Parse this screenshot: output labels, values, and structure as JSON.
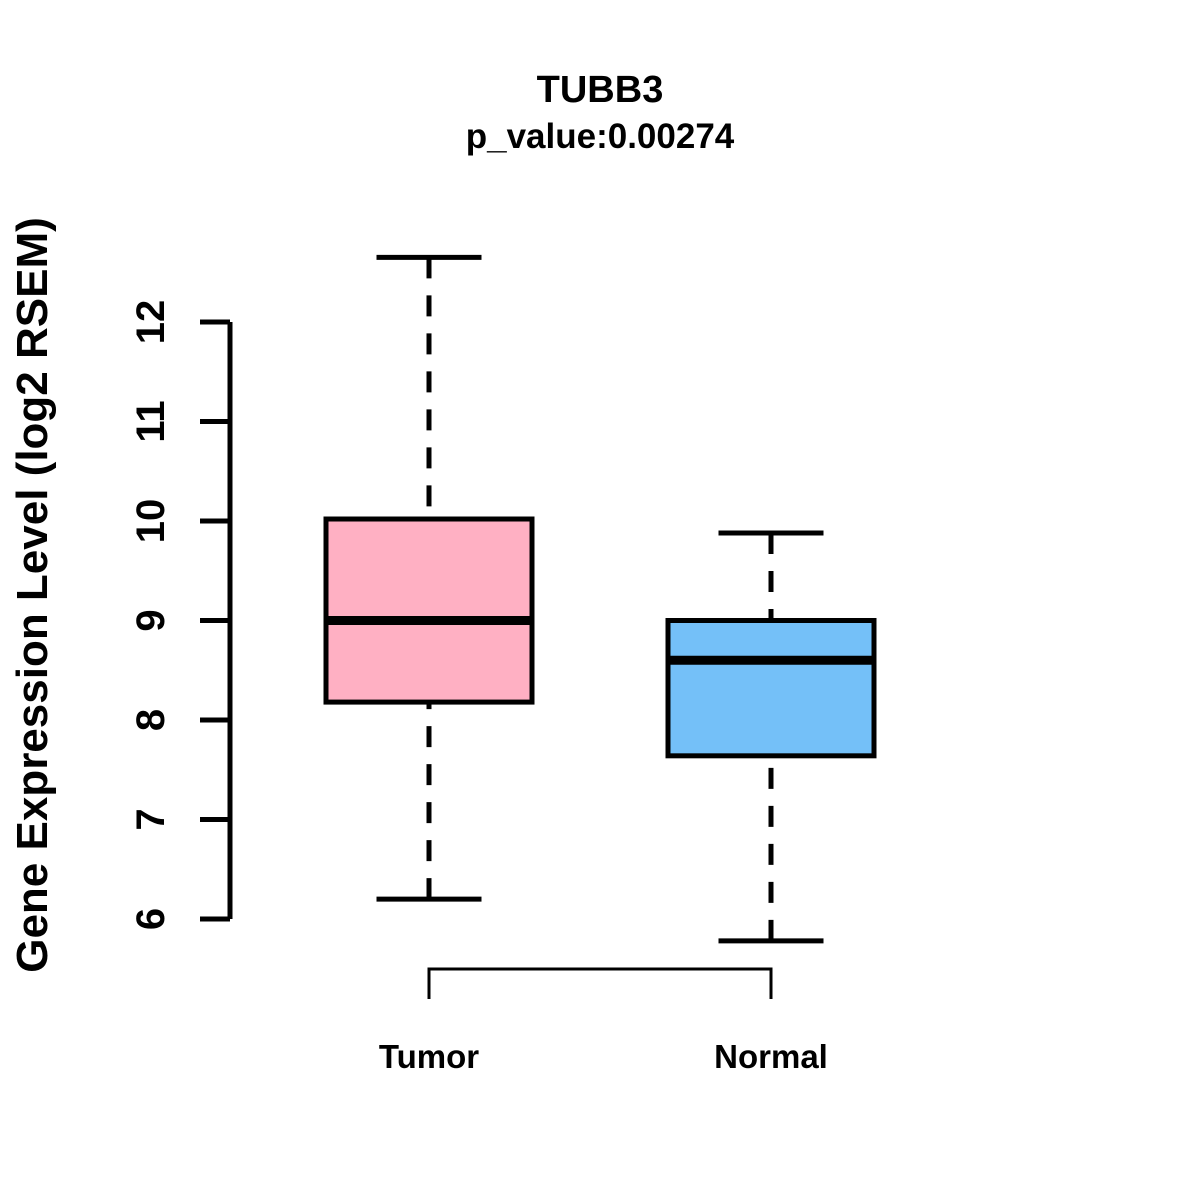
{
  "chart_data": {
    "type": "boxplot",
    "title": "TUBB3",
    "subtitle": "p_value:0.00274",
    "ylabel": "Gene Expression Level (log2 RSEM)",
    "yticks": [
      6,
      7,
      8,
      9,
      10,
      11,
      12
    ],
    "ylim": [
      5.5,
      12.8
    ],
    "grid": false,
    "legend_position": "none",
    "categories": [
      "Tumor",
      "Normal"
    ],
    "groups": [
      {
        "label": "Tumor",
        "color": "#ffb0c3",
        "whisker_low": 6.2,
        "q1": 8.18,
        "median": 9.0,
        "q3": 10.02,
        "whisker_high": 12.65
      },
      {
        "label": "Normal",
        "color": "#74c0f8",
        "whisker_low": 5.78,
        "q1": 7.64,
        "median": 8.6,
        "q3": 9.0,
        "whisker_high": 9.88
      }
    ],
    "significance_bracket": {
      "between": [
        "Tumor",
        "Normal"
      ]
    },
    "line_color": "#000000",
    "background_color": "#ffffff"
  }
}
